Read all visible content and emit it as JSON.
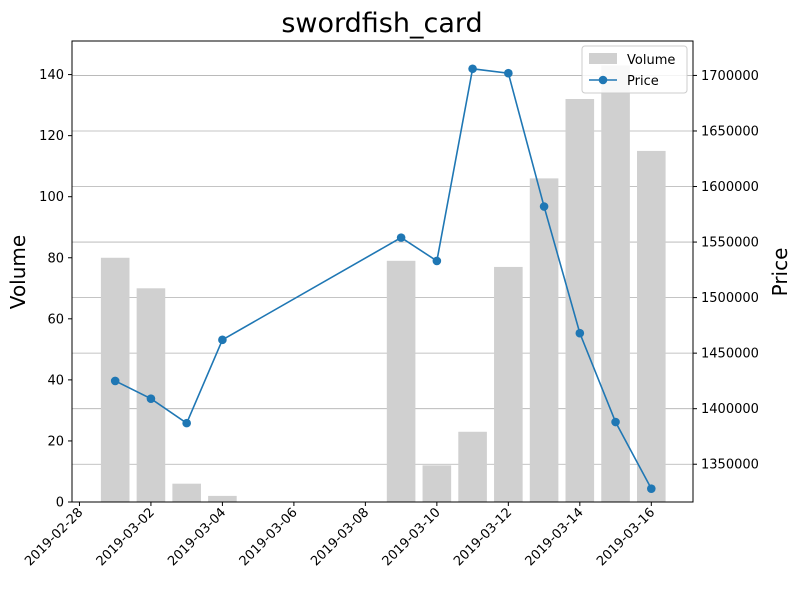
{
  "chart_data": {
    "type": "bar+line",
    "title": "swordfish_card",
    "xlabel": "",
    "ylabel_left": "Volume",
    "ylabel_right": "Price",
    "x_ticks": [
      "2019-02-28",
      "2019-03-02",
      "2019-03-04",
      "2019-03-06",
      "2019-03-08",
      "2019-03-10",
      "2019-03-12",
      "2019-03-14",
      "2019-03-16"
    ],
    "y_left_ticks": [
      0,
      20,
      40,
      60,
      80,
      100,
      120,
      140
    ],
    "y_right_ticks": [
      1350000,
      1400000,
      1450000,
      1500000,
      1550000,
      1600000,
      1650000,
      1700000
    ],
    "ylim_left": [
      0,
      151
    ],
    "ylim_right": [
      1316000,
      1731000
    ],
    "xlim": [
      "2019-02-27T19:00",
      "2019-03-17T04:00"
    ],
    "grid": "horizontal, right axis",
    "legend_position": "top-right",
    "series": [
      {
        "name": "Volume",
        "kind": "bar",
        "color": "#d0d0d0",
        "points": [
          {
            "x": "2019-03-01",
            "y": 80
          },
          {
            "x": "2019-03-02",
            "y": 70
          },
          {
            "x": "2019-03-03",
            "y": 6
          },
          {
            "x": "2019-03-04",
            "y": 2
          },
          {
            "x": "2019-03-09",
            "y": 79
          },
          {
            "x": "2019-03-10",
            "y": 12
          },
          {
            "x": "2019-03-11",
            "y": 23
          },
          {
            "x": "2019-03-12",
            "y": 77
          },
          {
            "x": "2019-03-13",
            "y": 106
          },
          {
            "x": "2019-03-14",
            "y": 132
          },
          {
            "x": "2019-03-15",
            "y": 143
          },
          {
            "x": "2019-03-16",
            "y": 115
          }
        ]
      },
      {
        "name": "Price",
        "kind": "line",
        "color": "#1f77b4",
        "points": [
          {
            "x": "2019-03-01",
            "y": 1425000
          },
          {
            "x": "2019-03-02",
            "y": 1409000
          },
          {
            "x": "2019-03-03",
            "y": 1387000
          },
          {
            "x": "2019-03-04",
            "y": 1462000
          },
          {
            "x": "2019-03-09",
            "y": 1554000
          },
          {
            "x": "2019-03-10",
            "y": 1533000
          },
          {
            "x": "2019-03-11",
            "y": 1706000
          },
          {
            "x": "2019-03-12",
            "y": 1702000
          },
          {
            "x": "2019-03-13",
            "y": 1582000
          },
          {
            "x": "2019-03-14",
            "y": 1468000
          },
          {
            "x": "2019-03-15",
            "y": 1388000
          },
          {
            "x": "2019-03-16",
            "y": 1328000
          }
        ]
      }
    ]
  }
}
